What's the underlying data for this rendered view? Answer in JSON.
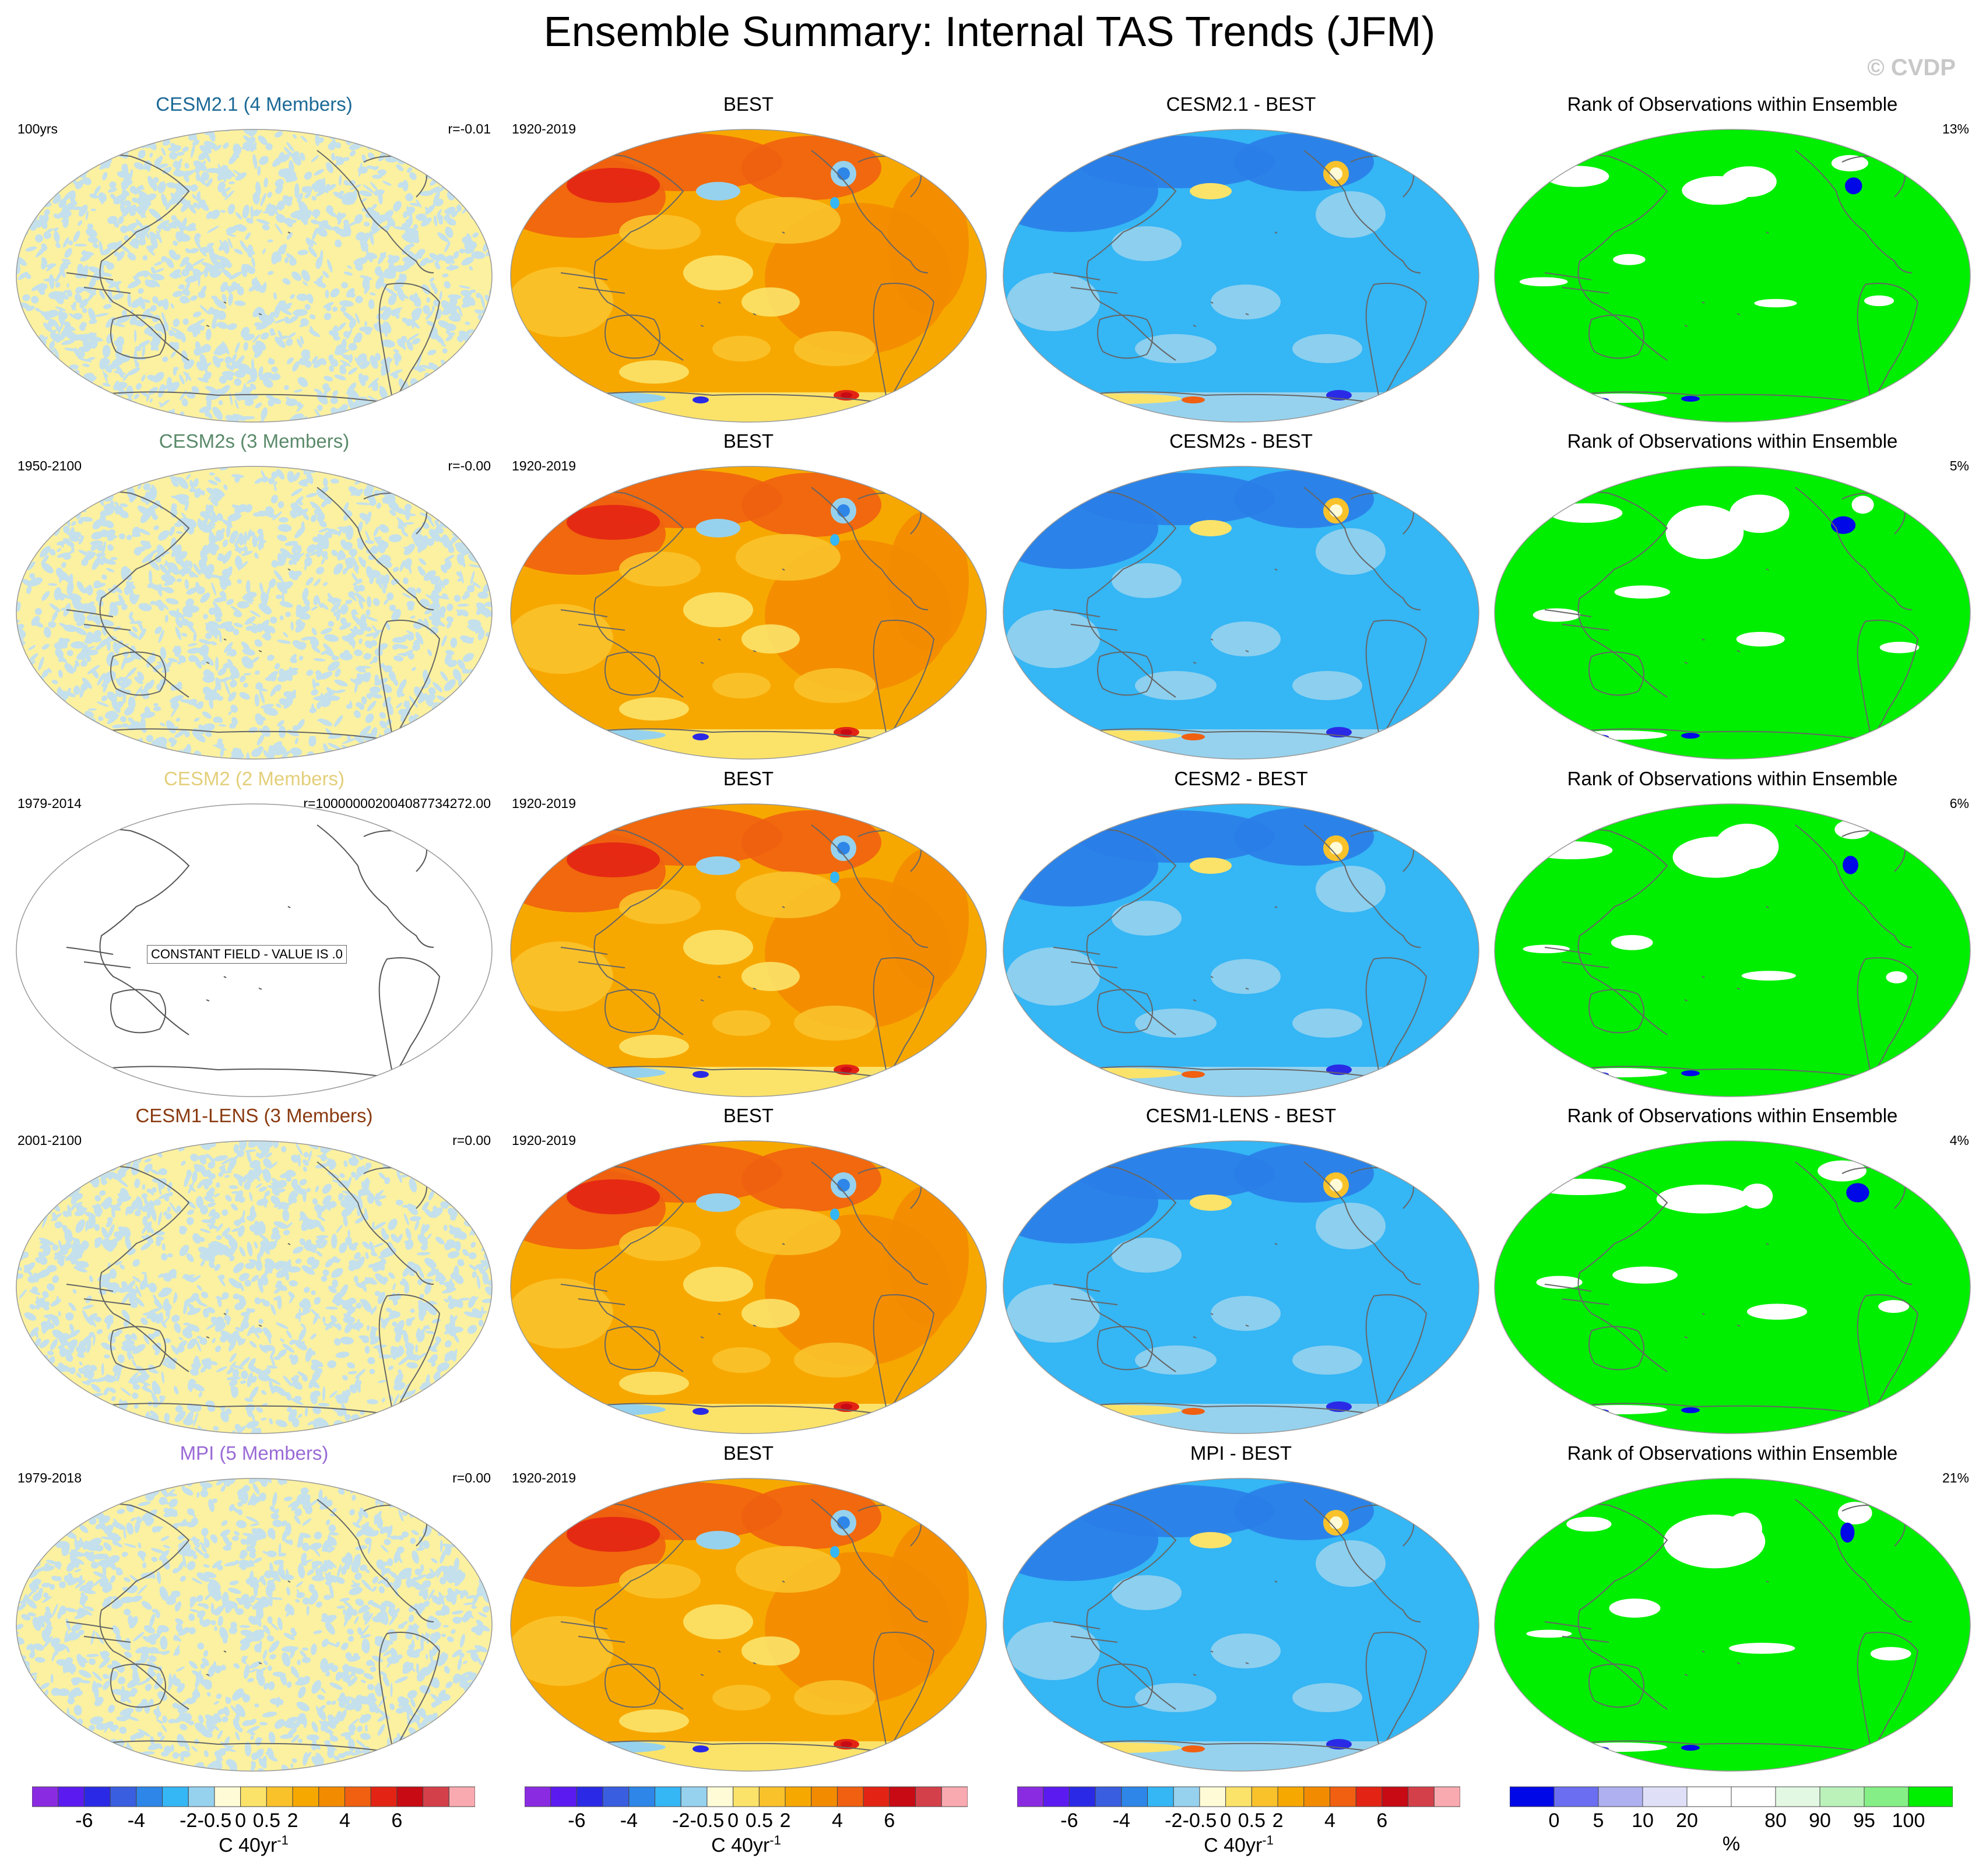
{
  "title": "Ensemble Summary: Internal TAS Trends (JFM)",
  "copyright": "© CVDP",
  "colors": {
    "model_noise_a": "#fbf1a0",
    "model_noise_b": "#c4e0ec",
    "best_base": "#f7a800",
    "best_warm": "#f06010",
    "best_hot": "#e32414",
    "diff_base": "#35b6f5",
    "diff_cold": "#2a7de8",
    "rank_green": "#00ee00",
    "rank_blue": "#0008e8",
    "coast": "#666666"
  },
  "rows": [
    {
      "model": {
        "title": "CESM2.1 (4 Members)",
        "title_color": "#1c6996",
        "left": "100yrs",
        "right": "r=-0.01",
        "field": "noise"
      },
      "best": {
        "title": "BEST",
        "left": "1920-2019"
      },
      "diff": {
        "title": "CESM2.1 - BEST"
      },
      "rank": {
        "title": "Rank of Observations within Ensemble",
        "right": "13%"
      }
    },
    {
      "model": {
        "title": "CESM2s (3 Members)",
        "title_color": "#5a8a6a",
        "left": "1950-2100",
        "right": "r=-0.00",
        "field": "noise"
      },
      "best": {
        "title": "BEST",
        "left": "1920-2019"
      },
      "diff": {
        "title": "CESM2s - BEST"
      },
      "rank": {
        "title": "Rank of Observations within Ensemble",
        "right": "5%"
      }
    },
    {
      "model": {
        "title": "CESM2 (2 Members)",
        "title_color": "#e3cf7a",
        "left": "1979-2014",
        "right": "r=100000002004087734272.00",
        "field": "constant",
        "constant_label": "CONSTANT FIELD - VALUE IS .0"
      },
      "best": {
        "title": "BEST",
        "left": "1920-2019"
      },
      "diff": {
        "title": "CESM2 - BEST"
      },
      "rank": {
        "title": "Rank of Observations within Ensemble",
        "right": "6%"
      }
    },
    {
      "model": {
        "title": "CESM1-LENS (3 Members)",
        "title_color": "#8a3a10",
        "left": "2001-2100",
        "right": "r=0.00",
        "field": "noise"
      },
      "best": {
        "title": "BEST",
        "left": "1920-2019"
      },
      "diff": {
        "title": "CESM1-LENS - BEST"
      },
      "rank": {
        "title": "Rank of Observations within Ensemble",
        "right": "4%"
      }
    },
    {
      "model": {
        "title": "MPI (5 Members)",
        "title_color": "#9a6ad6",
        "left": "1979-2018",
        "right": "r=0.00",
        "field": "noise"
      },
      "best": {
        "title": "BEST",
        "left": "1920-2019"
      },
      "diff": {
        "title": "MPI - BEST"
      },
      "rank": {
        "title": "Rank of Observations within Ensemble",
        "right": "21%"
      }
    }
  ],
  "colorbar_trend": {
    "colors": [
      "#8a2be2",
      "#5b1bf0",
      "#2a2ae6",
      "#3a5ee0",
      "#2e86e8",
      "#35b6f5",
      "#96d2ee",
      "#fffbd6",
      "#fbe36a",
      "#f9c22b",
      "#f7a800",
      "#f38b00",
      "#f06010",
      "#e32414",
      "#c80a14",
      "#d4404a",
      "#f9aab0"
    ],
    "ticks": [
      "-6",
      "-4",
      "-2",
      "-0.5",
      "0",
      "0.5",
      "2",
      "4",
      "6"
    ],
    "unit": "C 40yr",
    "unit_exp": "-1"
  },
  "colorbar_rank": {
    "colors": [
      "#0008e8",
      "#6b6ef0",
      "#aeb0f0",
      "#dfe0f8",
      "#ffffff",
      "#ffffff",
      "#e2f8e2",
      "#baf2ba",
      "#86ee86",
      "#00ee00"
    ],
    "ticks": [
      "0",
      "5",
      "10",
      "20",
      "80",
      "90",
      "95",
      "100"
    ],
    "unit": "%"
  }
}
